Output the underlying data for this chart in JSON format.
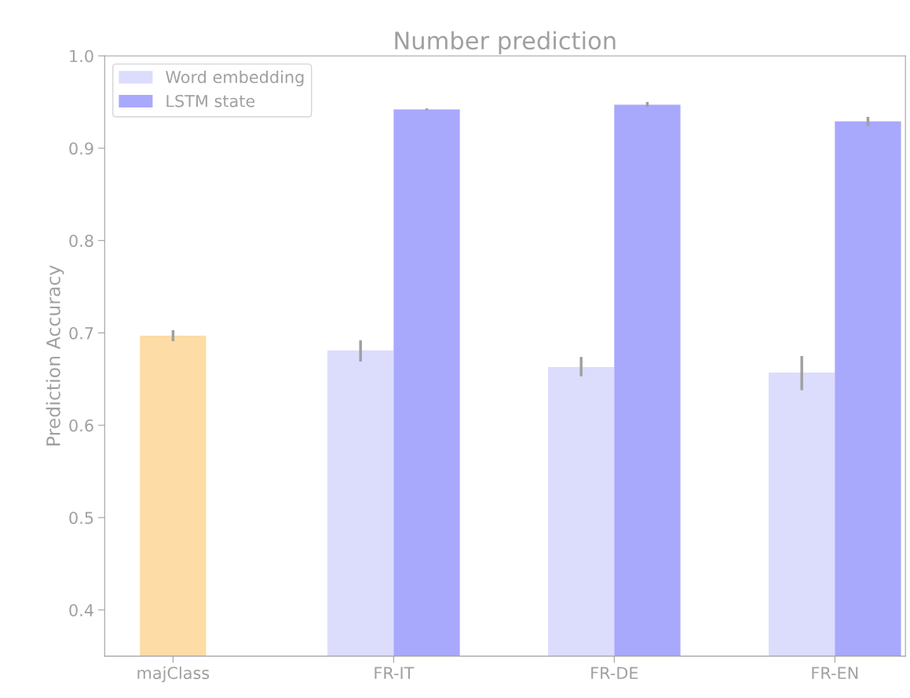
{
  "chart_data": {
    "type": "bar",
    "title": "Number prediction",
    "ylabel": "Prediction Accuracy",
    "categories": [
      "majClass",
      "FR-IT",
      "FR-DE",
      "FR-EN"
    ],
    "series": [
      {
        "color": "#fddca5",
        "values": [
          0.697,
          null,
          null,
          null
        ],
        "errors": [
          [
            0.691,
            0.703
          ],
          null,
          null,
          null
        ]
      },
      {
        "name": "Word embedding",
        "color": "#dcdcfd",
        "values": [
          null,
          0.681,
          0.663,
          0.657
        ],
        "errors": [
          null,
          [
            0.669,
            0.692
          ],
          [
            0.653,
            0.674
          ],
          [
            0.638,
            0.675
          ]
        ]
      },
      {
        "name": "LSTM state",
        "color": "#a8a8fd",
        "values": [
          null,
          0.942,
          0.947,
          0.929
        ],
        "errors": [
          null,
          [
            0.941,
            0.943
          ],
          [
            0.945,
            0.95
          ],
          [
            0.924,
            0.934
          ]
        ]
      }
    ],
    "ylim": [
      0.35,
      1.0
    ],
    "yticks": [
      0.4,
      0.5,
      0.6,
      0.7,
      0.8,
      0.9,
      {
        "value": 1.0,
        "label": "1.0"
      }
    ],
    "legend": "top left"
  }
}
